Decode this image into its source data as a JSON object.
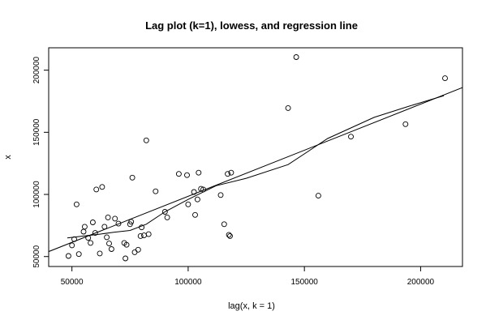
{
  "chart_data": {
    "type": "scatter",
    "title": "Lag plot (k=1), lowess, and regression line",
    "xlabel": "lag(x, k = 1)",
    "ylabel": "x",
    "xlim": [
      40000,
      218000
    ],
    "ylim": [
      42000,
      218000
    ],
    "x_ticks": [
      50000,
      100000,
      150000,
      200000
    ],
    "x_tick_labels": [
      "50000",
      "100000",
      "150000",
      "200000"
    ],
    "y_ticks": [
      50000,
      100000,
      150000,
      200000
    ],
    "y_tick_labels": [
      "50000",
      "100000",
      "150000",
      "200000"
    ],
    "points": [
      [
        48500,
        50500
      ],
      [
        50000,
        59000
      ],
      [
        51000,
        64000
      ],
      [
        52000,
        92000
      ],
      [
        53000,
        52000
      ],
      [
        55000,
        70000
      ],
      [
        55500,
        74000
      ],
      [
        57000,
        65000
      ],
      [
        58000,
        61000
      ],
      [
        59000,
        77500
      ],
      [
        60000,
        69000
      ],
      [
        60500,
        104000
      ],
      [
        62000,
        52500
      ],
      [
        63000,
        106000
      ],
      [
        64000,
        74000
      ],
      [
        65000,
        65500
      ],
      [
        65500,
        81500
      ],
      [
        66000,
        60500
      ],
      [
        67000,
        56000
      ],
      [
        68500,
        80500
      ],
      [
        70000,
        76500
      ],
      [
        72500,
        61000
      ],
      [
        73000,
        48500
      ],
      [
        73500,
        59500
      ],
      [
        75000,
        76000
      ],
      [
        75500,
        78000
      ],
      [
        76000,
        113500
      ],
      [
        77000,
        53500
      ],
      [
        78500,
        55500
      ],
      [
        79500,
        66500
      ],
      [
        80000,
        73500
      ],
      [
        81000,
        67000
      ],
      [
        82000,
        143500
      ],
      [
        83000,
        68000
      ],
      [
        86000,
        102500
      ],
      [
        90000,
        86000
      ],
      [
        91000,
        81500
      ],
      [
        96000,
        116500
      ],
      [
        99500,
        115500
      ],
      [
        100000,
        92000
      ],
      [
        102500,
        102000
      ],
      [
        103000,
        83500
      ],
      [
        104000,
        96000
      ],
      [
        104500,
        117500
      ],
      [
        105500,
        104500
      ],
      [
        106500,
        104000
      ],
      [
        114000,
        99500
      ],
      [
        115500,
        76000
      ],
      [
        117000,
        116500
      ],
      [
        117500,
        67500
      ],
      [
        118500,
        117500
      ],
      [
        118000,
        66500
      ],
      [
        143000,
        169500
      ],
      [
        146500,
        210500
      ],
      [
        156000,
        99000
      ],
      [
        170000,
        146500
      ],
      [
        193500,
        156500
      ],
      [
        210500,
        193500
      ]
    ],
    "series": [
      {
        "name": "",
        "type": "line",
        "x": [
          40000,
          218000
        ],
        "y": [
          54000,
          186000
        ]
      },
      {
        "name": "",
        "type": "line",
        "x": [
          48000,
          55000,
          62000,
          68000,
          75000,
          82000,
          90000,
          100000,
          112000,
          125000,
          143000,
          160000,
          180000,
          195000,
          210000
        ],
        "y": [
          65000,
          66500,
          68000,
          69500,
          71000,
          76000,
          86000,
          96000,
          107000,
          113000,
          124000,
          145000,
          162000,
          171000,
          179500
        ]
      }
    ],
    "grid": false,
    "legend": "none",
    "colors": {
      "points": "#000000",
      "lines": "#000000"
    }
  }
}
